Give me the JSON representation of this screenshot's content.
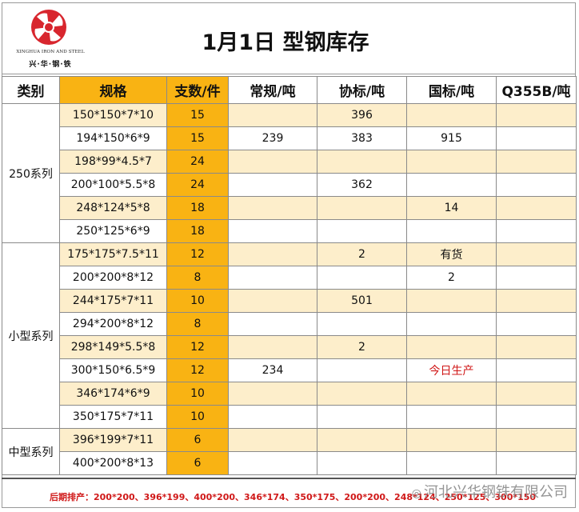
{
  "logo": {
    "company_en": "XINGHUA IRON AND STEEL",
    "company_cn": "兴·华·钢·铁"
  },
  "title": "1月1日  型钢库存",
  "headers": {
    "category": "类别",
    "spec": "规格",
    "pieces": "支数/件",
    "col_regular": "常规/吨",
    "col_association": "协标/吨",
    "col_national": "国标/吨",
    "col_q355b": "Q355B/吨"
  },
  "groups": [
    {
      "name": "250系列",
      "rows": [
        {
          "spec": "150*150*7*10",
          "pieces": "15",
          "regular": "",
          "association": "396",
          "national": "",
          "q355b": ""
        },
        {
          "spec": "194*150*6*9",
          "pieces": "15",
          "regular": "239",
          "association": "383",
          "national": "915",
          "q355b": ""
        },
        {
          "spec": "198*99*4.5*7",
          "pieces": "24",
          "regular": "",
          "association": "",
          "national": "",
          "q355b": ""
        },
        {
          "spec": "200*100*5.5*8",
          "pieces": "24",
          "regular": "",
          "association": "362",
          "national": "",
          "q355b": ""
        },
        {
          "spec": "248*124*5*8",
          "pieces": "18",
          "regular": "",
          "association": "",
          "national": "14",
          "q355b": ""
        },
        {
          "spec": "250*125*6*9",
          "pieces": "18",
          "regular": "",
          "association": "",
          "national": "",
          "q355b": ""
        }
      ]
    },
    {
      "name": "小型系列",
      "rows": [
        {
          "spec": "175*175*7.5*11",
          "pieces": "12",
          "regular": "",
          "association": "2",
          "national": "有货",
          "q355b": ""
        },
        {
          "spec": "200*200*8*12",
          "pieces": "8",
          "regular": "",
          "association": "",
          "national": "2",
          "q355b": ""
        },
        {
          "spec": "244*175*7*11",
          "pieces": "10",
          "regular": "",
          "association": "501",
          "national": "",
          "q355b": ""
        },
        {
          "spec": "294*200*8*12",
          "pieces": "8",
          "regular": "",
          "association": "",
          "national": "",
          "q355b": ""
        },
        {
          "spec": "298*149*5.5*8",
          "pieces": "12",
          "regular": "",
          "association": "2",
          "national": "",
          "q355b": ""
        },
        {
          "spec": "300*150*6.5*9",
          "pieces": "12",
          "regular": "234",
          "association": "",
          "national": "今日生产",
          "q355b": ""
        },
        {
          "spec": "346*174*6*9",
          "pieces": "10",
          "regular": "",
          "association": "",
          "national": "",
          "q355b": ""
        },
        {
          "spec": "350*175*7*11",
          "pieces": "10",
          "regular": "",
          "association": "",
          "national": "",
          "q355b": ""
        }
      ]
    },
    {
      "name": "中型系列",
      "rows": [
        {
          "spec": "396*199*7*11",
          "pieces": "6",
          "regular": "",
          "association": "",
          "national": "",
          "q355b": ""
        },
        {
          "spec": "400*200*8*13",
          "pieces": "6",
          "regular": "",
          "association": "",
          "national": "",
          "q355b": ""
        }
      ]
    }
  ],
  "footer": {
    "plan_text": "后期排产：200*200、396*199、400*200、346*174、350*175、200*200、248*124、250*125、300*150",
    "watermark": "河北兴华钢铁有限公司"
  },
  "colors": {
    "accent_orange": "#f9b313",
    "alt_row": "#fdeecb",
    "red_text": "#d01818"
  }
}
